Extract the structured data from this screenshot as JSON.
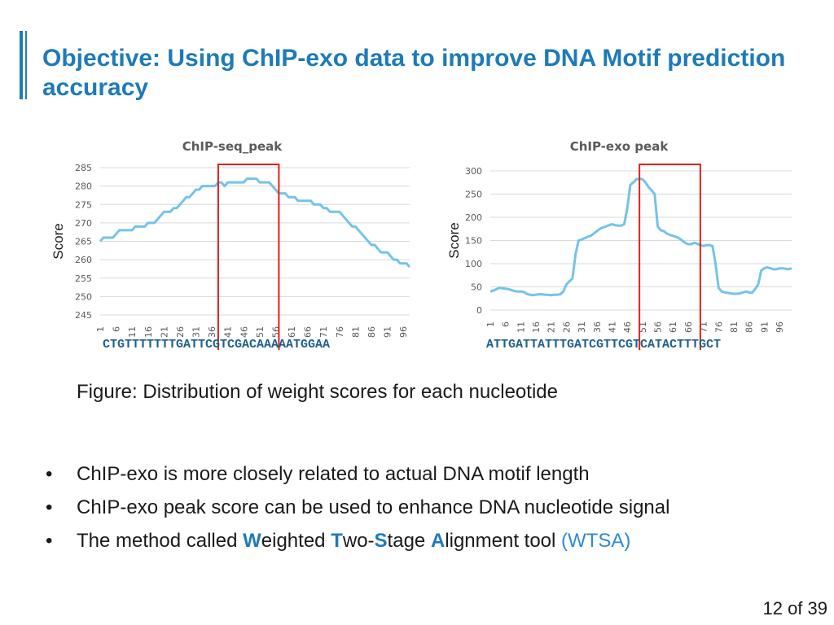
{
  "slide": {
    "title": "Objective: Using ChIP-exo data to improve DNA Motif prediction accuracy",
    "caption": "Figure: Distribution of weight scores for each nucleotide",
    "bullets": {
      "b1": "ChIP-exo is more closely related to actual DNA motif length",
      "b2": "ChIP-exo peak score can be used to enhance DNA nucleotide signal",
      "b3_pre": "The method called ",
      "b3_W": "W",
      "b3_eighted": "eighted ",
      "b3_T": "T",
      "b3_wo": "wo-",
      "b3_S": "S",
      "b3_tage": "tage ",
      "b3_A": "A",
      "b3_lignment": "lignment tool ",
      "b3_acronym": "(WTSA)"
    },
    "bullet_glyph": "•",
    "page_number": "12 of 39",
    "sequences": {
      "left": "CTGTTTTTTTGATTCGTCGACAAAAATGGAA",
      "right": "ATTGATTATTTGATCGTTCGTCATACTTTGCT"
    }
  },
  "colors": {
    "title": "#1e7bb8",
    "line": "#74c3ea",
    "highlight_box": "#e0201b",
    "grid": "#d9d9d9",
    "axis_text": "#595959"
  },
  "chart_data": [
    {
      "type": "line",
      "title": "ChIP-seq_peak",
      "ylabel": "Score",
      "xlabel": "",
      "ylim": [
        245,
        285
      ],
      "yticks": [
        245,
        250,
        255,
        260,
        265,
        270,
        275,
        280,
        285
      ],
      "xticks": [
        "1",
        "6",
        "11",
        "16",
        "21",
        "26",
        "31",
        "36",
        "41",
        "46",
        "51",
        "56",
        "61",
        "66",
        "71",
        "76",
        "81",
        "86",
        "91",
        "96"
      ],
      "x_start": 1,
      "grid": true,
      "highlight_range": [
        38,
        57
      ],
      "series": [
        {
          "values": [
            265,
            266,
            266,
            266,
            266,
            267,
            268,
            268,
            268,
            268,
            268,
            269,
            269,
            269,
            269,
            270,
            270,
            270,
            271,
            272,
            273,
            273,
            273,
            274,
            274,
            275,
            276,
            277,
            277,
            278,
            279,
            279,
            280,
            280,
            280,
            280,
            280,
            281,
            281,
            280,
            281,
            281,
            281,
            281,
            281,
            281,
            282,
            282,
            282,
            282,
            281,
            281,
            281,
            281,
            280,
            279,
            278,
            278,
            278,
            277,
            277,
            277,
            276,
            276,
            276,
            276,
            276,
            275,
            275,
            275,
            274,
            274,
            273,
            273,
            273,
            273,
            272,
            271,
            270,
            269,
            269,
            268,
            267,
            266,
            265,
            264,
            264,
            263,
            262,
            262,
            262,
            261,
            260,
            260,
            259,
            259,
            259,
            258
          ]
        }
      ]
    },
    {
      "type": "line",
      "title": "ChIP-exo peak",
      "ylabel": "Score",
      "xlabel": "",
      "ylim": [
        0,
        300
      ],
      "yticks": [
        0,
        50,
        100,
        150,
        200,
        250,
        300
      ],
      "xticks": [
        "1",
        "6",
        "11",
        "16",
        "21",
        "26",
        "31",
        "36",
        "41",
        "46",
        "51",
        "56",
        "61",
        "66",
        "71",
        "76",
        "81",
        "86",
        "91",
        "96"
      ],
      "x_start": 1,
      "grid": true,
      "highlight_range": [
        50,
        70
      ],
      "series": [
        {
          "values": [
            40,
            42,
            45,
            48,
            47,
            46,
            45,
            43,
            41,
            40,
            40,
            39,
            35,
            33,
            32,
            33,
            34,
            34,
            33,
            33,
            32,
            33,
            33,
            34,
            40,
            55,
            62,
            68,
            120,
            150,
            152,
            155,
            158,
            160,
            165,
            170,
            175,
            178,
            180,
            183,
            185,
            183,
            182,
            182,
            185,
            220,
            270,
            275,
            282,
            283,
            282,
            275,
            265,
            258,
            250,
            180,
            172,
            170,
            165,
            162,
            160,
            158,
            155,
            150,
            145,
            142,
            142,
            145,
            143,
            140,
            138,
            140,
            140,
            138,
            100,
            48,
            40,
            38,
            37,
            36,
            35,
            35,
            36,
            38,
            40,
            38,
            37,
            45,
            55,
            85,
            90,
            92,
            90,
            88,
            88,
            90,
            90,
            89,
            88,
            90
          ]
        }
      ]
    }
  ]
}
